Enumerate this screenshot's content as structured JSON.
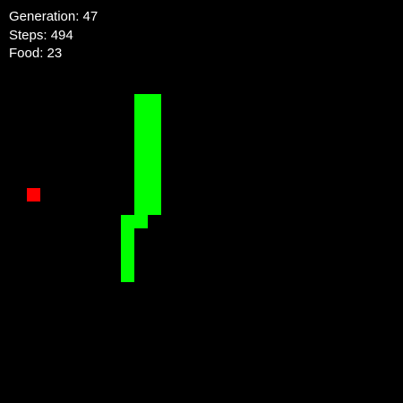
{
  "hud": {
    "generation": "Generation: 47",
    "steps": "Steps: 494",
    "food": "Food: 23"
  },
  "colors": {
    "background": "#000000",
    "snake": "#00ff00",
    "food": "#ff0000",
    "text": "#ffffff"
  },
  "board": {
    "cols": 30,
    "rows": 30
  },
  "food": {
    "col": 2,
    "row": 14
  },
  "snake": [
    {
      "col": 10,
      "row": 7
    },
    {
      "col": 11,
      "row": 7
    },
    {
      "col": 10,
      "row": 8
    },
    {
      "col": 11,
      "row": 8
    },
    {
      "col": 10,
      "row": 9
    },
    {
      "col": 11,
      "row": 9
    },
    {
      "col": 10,
      "row": 10
    },
    {
      "col": 11,
      "row": 10
    },
    {
      "col": 10,
      "row": 11
    },
    {
      "col": 11,
      "row": 11
    },
    {
      "col": 10,
      "row": 12
    },
    {
      "col": 11,
      "row": 12
    },
    {
      "col": 10,
      "row": 13
    },
    {
      "col": 11,
      "row": 13
    },
    {
      "col": 10,
      "row": 14
    },
    {
      "col": 11,
      "row": 14
    },
    {
      "col": 10,
      "row": 15
    },
    {
      "col": 11,
      "row": 15
    },
    {
      "col": 9,
      "row": 16
    },
    {
      "col": 10,
      "row": 16
    },
    {
      "col": 9,
      "row": 17
    },
    {
      "col": 9,
      "row": 18
    },
    {
      "col": 9,
      "row": 19
    },
    {
      "col": 9,
      "row": 20
    }
  ]
}
